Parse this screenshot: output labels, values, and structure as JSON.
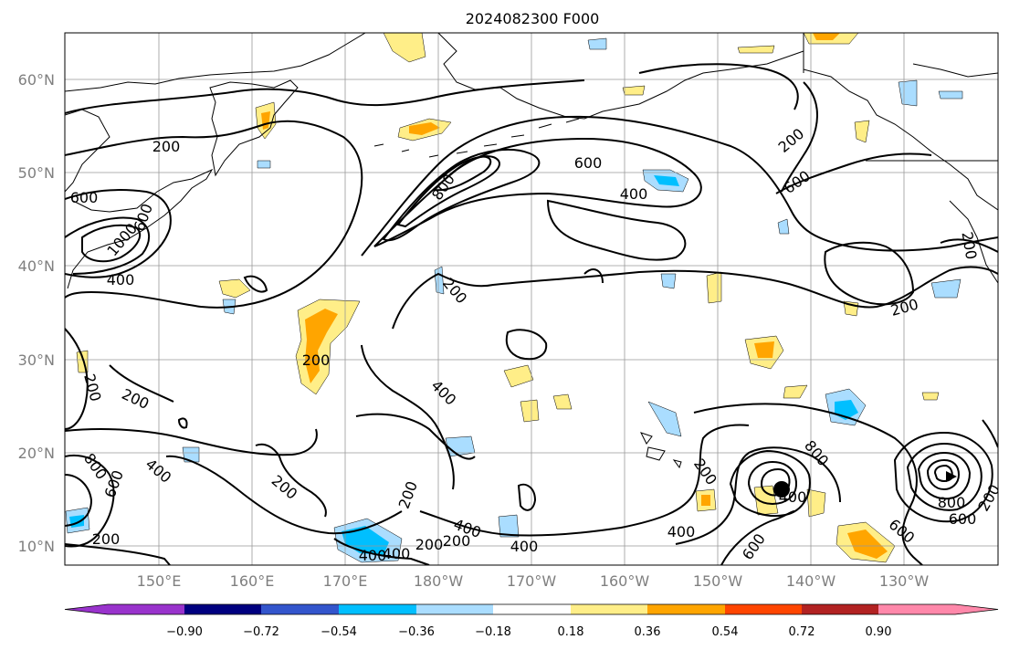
{
  "title": "2024082300 F000",
  "lat_labels": [
    "60°N",
    "50°N",
    "40°N",
    "30°N",
    "20°N",
    "10°N"
  ],
  "lon_labels": [
    "150°E",
    "160°E",
    "170°E",
    "180°W",
    "170°W",
    "160°W",
    "150°W",
    "140°W",
    "130°W"
  ],
  "contour_labels": [
    "200",
    "200",
    "600",
    "600",
    "1000",
    "400",
    "800",
    "600",
    "400",
    "200",
    "200",
    "600",
    "200",
    "200",
    "200",
    "400",
    "200",
    "800",
    "600",
    "400",
    "200",
    "200",
    "400",
    "400",
    "200",
    "200",
    "400",
    "400",
    "200",
    "600",
    "800",
    "400",
    "600",
    "800",
    "600",
    "200",
    "200",
    "400"
  ],
  "colorbar": {
    "labels": [
      "−0.90",
      "−0.72",
      "−0.54",
      "−0.36",
      "−0.18",
      "0.18",
      "0.36",
      "0.54",
      "0.72",
      "0.90"
    ],
    "colors": [
      "#9933cc",
      "#000080",
      "#3355cc",
      "#00bfff",
      "#aaddff",
      "#ffffff",
      "#ffee88",
      "#ffa500",
      "#ff4500",
      "#b22222",
      "#ff88aa",
      "#ff88aa"
    ]
  },
  "colors": {
    "pos_light": "#ffee88",
    "pos_mid": "#ffa500",
    "neg_light": "#aaddff",
    "neg_mid": "#00bfff"
  }
}
